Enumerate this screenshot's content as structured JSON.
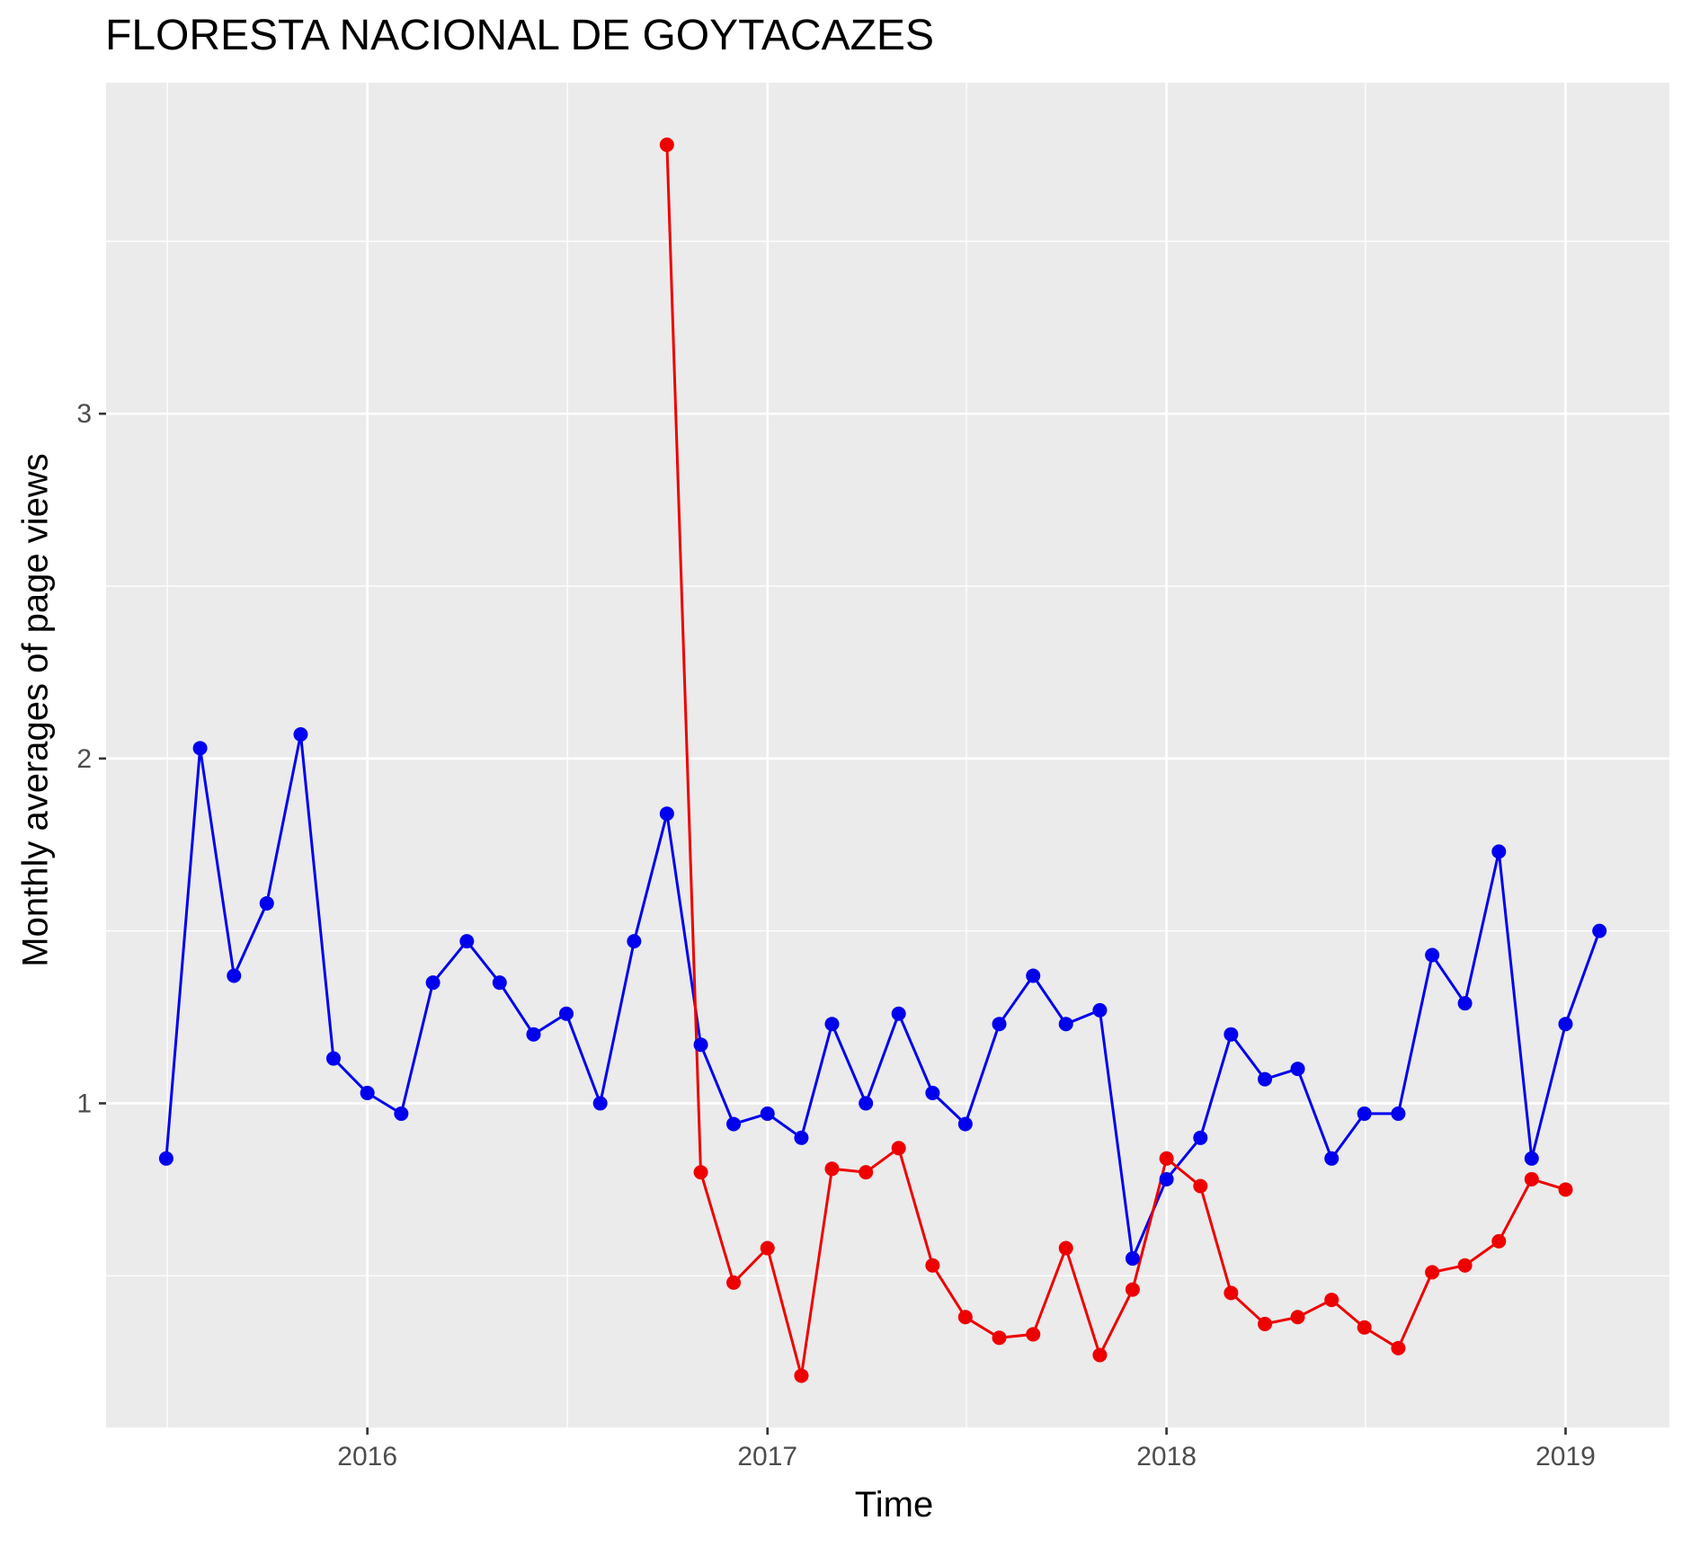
{
  "chart_data": {
    "type": "line",
    "title": "FLORESTA NACIONAL DE GOYTACAZES",
    "xlabel": "Time",
    "ylabel": "Monthly averages of page views",
    "x_tick_labels": [
      "2016",
      "2017",
      "2018",
      "2019"
    ],
    "y_tick_labels": [
      "1",
      "2",
      "3"
    ],
    "xlim": [
      "2015-05-07",
      "2019-04-06"
    ],
    "ylim": [
      0.06,
      3.96
    ],
    "grid": true,
    "legend": "none",
    "series": [
      {
        "color": "#0000ee",
        "x": [
          "2015-07-01",
          "2015-08-01",
          "2015-09-01",
          "2015-10-01",
          "2015-11-01",
          "2015-12-01",
          "2016-01-01",
          "2016-02-01",
          "2016-03-01",
          "2016-04-01",
          "2016-05-01",
          "2016-06-01",
          "2016-07-01",
          "2016-08-01",
          "2016-09-01",
          "2016-10-01",
          "2016-11-01",
          "2016-12-01",
          "2017-01-01",
          "2017-02-01",
          "2017-03-01",
          "2017-04-01",
          "2017-05-01",
          "2017-06-01",
          "2017-07-01",
          "2017-08-01",
          "2017-09-01",
          "2017-10-01",
          "2017-11-01",
          "2017-12-01",
          "2018-01-01",
          "2018-02-01",
          "2018-03-01",
          "2018-04-01",
          "2018-05-01",
          "2018-06-01",
          "2018-07-01",
          "2018-08-01",
          "2018-09-01",
          "2018-10-01",
          "2018-11-01",
          "2018-12-01",
          "2019-01-01",
          "2019-02-01"
        ],
        "y": [
          0.84,
          2.03,
          1.37,
          1.58,
          2.07,
          1.13,
          1.03,
          0.97,
          1.35,
          1.47,
          1.35,
          1.2,
          1.26,
          1.0,
          1.47,
          1.84,
          1.17,
          0.94,
          0.97,
          0.9,
          1.23,
          1.0,
          1.26,
          1.03,
          0.94,
          1.23,
          1.37,
          1.23,
          1.27,
          0.55,
          0.78,
          0.9,
          1.2,
          1.07,
          1.1,
          0.84,
          0.97,
          0.97,
          1.43,
          1.29,
          1.73,
          0.84,
          1.23,
          1.5
        ]
      },
      {
        "color": "#ee0000",
        "x": [
          "2016-10-01",
          "2016-11-01",
          "2016-12-01",
          "2017-01-01",
          "2017-02-01",
          "2017-03-01",
          "2017-04-01",
          "2017-05-01",
          "2017-06-01",
          "2017-07-01",
          "2017-08-01",
          "2017-09-01",
          "2017-10-01",
          "2017-11-01",
          "2017-12-01",
          "2018-01-01",
          "2018-02-01",
          "2018-03-01",
          "2018-04-01",
          "2018-05-01",
          "2018-06-01",
          "2018-07-01",
          "2018-08-01",
          "2018-09-01",
          "2018-10-01",
          "2018-11-01",
          "2018-12-01",
          "2019-01-01"
        ],
        "y": [
          3.78,
          0.8,
          0.48,
          0.58,
          0.21,
          0.81,
          0.8,
          0.87,
          0.53,
          0.38,
          0.32,
          0.33,
          0.58,
          0.27,
          0.46,
          0.84,
          0.76,
          0.45,
          0.36,
          0.38,
          0.43,
          0.35,
          0.29,
          0.51,
          0.53,
          0.6,
          0.78,
          0.75
        ]
      }
    ]
  }
}
